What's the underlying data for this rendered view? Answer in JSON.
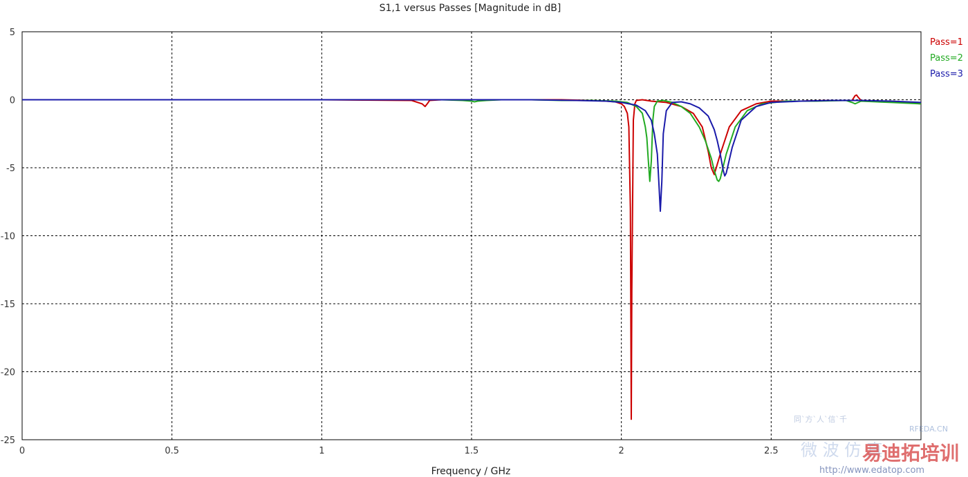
{
  "chart_data": {
    "type": "line",
    "title": "S1,1 versus Passes [Magnitude in dB]",
    "xlabel": "Frequency / GHz",
    "ylabel": "",
    "xlim": [
      0,
      3
    ],
    "ylim": [
      -25,
      5
    ],
    "x_ticks": [
      "0",
      "0.5",
      "1",
      "1.5",
      "2",
      "2.5"
    ],
    "y_ticks": [
      "5",
      "0",
      "-5",
      "-10",
      "-15",
      "-20",
      "-25"
    ],
    "grid": true,
    "legend_position": "top-right",
    "series": [
      {
        "name": "Pass=1",
        "color": "#cc0000",
        "x": [
          0,
          0.5,
          1.0,
          1.3,
          1.335,
          1.345,
          1.352,
          1.36,
          1.4,
          1.6,
          1.8,
          1.9,
          1.95,
          1.98,
          2.0,
          2.01,
          2.02,
          2.025,
          2.03,
          2.033,
          2.035,
          2.04,
          2.045,
          2.05,
          2.07,
          2.1,
          2.15,
          2.2,
          2.24,
          2.27,
          2.29,
          2.3,
          2.31,
          2.33,
          2.36,
          2.4,
          2.45,
          2.5,
          2.6,
          2.7,
          2.77,
          2.78,
          2.785,
          2.79,
          2.8,
          2.85,
          2.9,
          2.95,
          3.0
        ],
        "y": [
          0,
          0,
          0,
          -0.05,
          -0.3,
          -0.5,
          -0.3,
          -0.05,
          0,
          0,
          0,
          -0.05,
          -0.1,
          -0.15,
          -0.3,
          -0.5,
          -1.0,
          -2.0,
          -8.0,
          -23.5,
          -14.0,
          -1.5,
          -0.3,
          -0.05,
          0,
          -0.1,
          -0.2,
          -0.5,
          -1.0,
          -2.0,
          -3.8,
          -5.0,
          -5.5,
          -4.0,
          -2.0,
          -0.8,
          -0.3,
          -0.1,
          -0.1,
          -0.05,
          -0.05,
          0.3,
          0.35,
          0.2,
          -0.05,
          -0.1,
          -0.1,
          -0.2,
          -0.3
        ]
      },
      {
        "name": "Pass=2",
        "color": "#22aa22",
        "x": [
          0,
          0.5,
          1.0,
          1.4,
          1.47,
          1.5,
          1.51,
          1.52,
          1.55,
          1.6,
          1.7,
          1.8,
          1.9,
          1.98,
          2.02,
          2.05,
          2.07,
          2.08,
          2.085,
          2.09,
          2.095,
          2.1,
          2.105,
          2.11,
          2.12,
          2.14,
          2.17,
          2.2,
          2.23,
          2.26,
          2.28,
          2.3,
          2.31,
          2.32,
          2.325,
          2.33,
          2.35,
          2.38,
          2.42,
          2.47,
          2.55,
          2.65,
          2.75,
          2.77,
          2.78,
          2.8,
          2.9,
          3.0
        ],
        "y": [
          0,
          0,
          0,
          0,
          -0.05,
          -0.1,
          -0.15,
          -0.1,
          -0.05,
          0,
          0,
          -0.05,
          -0.05,
          -0.1,
          -0.2,
          -0.5,
          -1.0,
          -2.0,
          -2.8,
          -4.5,
          -6.0,
          -4.5,
          -1.5,
          -0.5,
          -0.1,
          -0.05,
          -0.2,
          -0.5,
          -1.0,
          -2.0,
          -3.0,
          -4.3,
          -5.2,
          -5.9,
          -6.0,
          -5.8,
          -4.0,
          -2.0,
          -0.8,
          -0.3,
          -0.1,
          -0.1,
          -0.05,
          -0.2,
          -0.3,
          -0.1,
          -0.2,
          -0.3
        ]
      },
      {
        "name": "Pass=3",
        "color": "#1a1aaa",
        "x": [
          0,
          0.5,
          1.0,
          1.5,
          1.7,
          1.85,
          1.95,
          2.0,
          2.05,
          2.08,
          2.1,
          2.11,
          2.12,
          2.125,
          2.13,
          2.135,
          2.14,
          2.15,
          2.17,
          2.2,
          2.23,
          2.26,
          2.29,
          2.31,
          2.32,
          2.33,
          2.34,
          2.345,
          2.35,
          2.37,
          2.4,
          2.45,
          2.5,
          2.6,
          2.7,
          2.8,
          2.9,
          3.0
        ],
        "y": [
          0,
          0,
          0,
          0,
          0,
          -0.05,
          -0.1,
          -0.2,
          -0.4,
          -0.8,
          -1.5,
          -2.5,
          -4.0,
          -6.0,
          -8.2,
          -6.0,
          -2.5,
          -0.8,
          -0.2,
          -0.15,
          -0.3,
          -0.6,
          -1.2,
          -2.2,
          -3.0,
          -4.0,
          -5.2,
          -5.6,
          -5.4,
          -3.5,
          -1.5,
          -0.5,
          -0.2,
          -0.1,
          -0.05,
          -0.05,
          -0.1,
          -0.2
        ]
      }
    ]
  },
  "watermark": {
    "line1": "同ˋ方ˋ人ˋ信ˋ千",
    "brand_small": "RFEDA.CN",
    "brand_large": "易迪拓培训",
    "brand_cn": "微 波 仿 真",
    "url": "http://www.edatop.com"
  }
}
